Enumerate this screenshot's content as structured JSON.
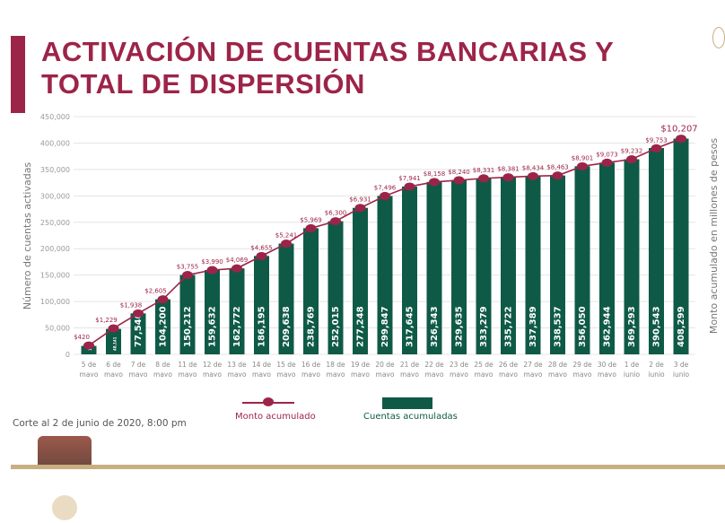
{
  "title_line1": "ACTIVACIÓN DE CUENTAS BANCARIAS Y",
  "title_line2": "TOTAL DE DISPERSIÓN",
  "note": "Corte al 2 de junio de 2020, 8:00 pm",
  "colors": {
    "accent": "#9d2449",
    "bars": "#0f5a47",
    "band": "#c9ae82"
  },
  "chart_data": {
    "type": "bar+line",
    "ylabel": "Número de cuentas activadas",
    "y2label": "Monto acumulado en millones de pesos",
    "ylim": [
      0,
      450000
    ],
    "yticks": [
      "0",
      "50,000",
      "100,000",
      "150,000",
      "200,000",
      "250,000",
      "300,000",
      "350,000",
      "400,000",
      "450,000"
    ],
    "grid": true,
    "legend_position": "bottom",
    "categories": [
      [
        "5 de",
        "mayo"
      ],
      [
        "6 de",
        "mayo"
      ],
      [
        "7 de",
        "mayo"
      ],
      [
        "8 de",
        "mayo"
      ],
      [
        "11 de",
        "mayo"
      ],
      [
        "12 de",
        "mayo"
      ],
      [
        "13 de",
        "mayo"
      ],
      [
        "14 de",
        "mayo"
      ],
      [
        "15 de",
        "mayo"
      ],
      [
        "16 de",
        "mayo"
      ],
      [
        "18 de",
        "mayo"
      ],
      [
        "19 de",
        "mayo"
      ],
      [
        "20 de",
        "mayo"
      ],
      [
        "21 de",
        "mayo"
      ],
      [
        "22 de",
        "mayo"
      ],
      [
        "23 de",
        "mayo"
      ],
      [
        "25 de",
        "mayo"
      ],
      [
        "26 de",
        "mayo"
      ],
      [
        "27 de",
        "mayo"
      ],
      [
        "28 de",
        "mayo"
      ],
      [
        "29 de",
        "mayo"
      ],
      [
        "30 de",
        "mayo"
      ],
      [
        "1 de",
        "junio"
      ],
      [
        "2 de",
        "junio"
      ],
      [
        "3 de",
        "junio"
      ]
    ],
    "series": [
      {
        "name": "Cuentas acumuladas",
        "type": "bar",
        "values": [
          16000,
          48141,
          77540,
          104200,
          150212,
          159632,
          162772,
          186195,
          209638,
          238769,
          252015,
          277248,
          299847,
          317645,
          326343,
          329635,
          333279,
          335722,
          337389,
          338537,
          356050,
          362944,
          369293,
          390543,
          408299
        ],
        "labels": [
          "16,000",
          "48,141",
          "77,540",
          "104,200",
          "150,212",
          "159,632",
          "162,772",
          "186,195",
          "209,638",
          "238,769",
          "252,015",
          "277,248",
          "299,847",
          "317,645",
          "326,343",
          "329,635",
          "333,279",
          "335,722",
          "337,389",
          "338,537",
          "356,050",
          "362,944",
          "369,293",
          "390,543",
          "408,299"
        ]
      },
      {
        "name": "Monto acumulado",
        "type": "line",
        "values": [
          420,
          1229,
          1938,
          2605,
          3755,
          3990,
          4069,
          4655,
          5241,
          5969,
          6300,
          6931,
          7496,
          7941,
          8158,
          8240,
          8331,
          8381,
          8434,
          8463,
          8901,
          9073,
          9232,
          9753,
          10207
        ],
        "labels": [
          "$420",
          "$1,229",
          "$1,938",
          "$2,605",
          "$3,755",
          "$3,990",
          "$4,069",
          "$4,655",
          "$5,241",
          "$5,969",
          "$6,300",
          "$6,931",
          "$7,496",
          "$7,941",
          "$8,158",
          "$8,240",
          "$8,331",
          "$8,381",
          "$8,434",
          "$8,463",
          "$8,901",
          "$9,073",
          "$9,232",
          "$9,753",
          "$10,207"
        ]
      }
    ]
  }
}
